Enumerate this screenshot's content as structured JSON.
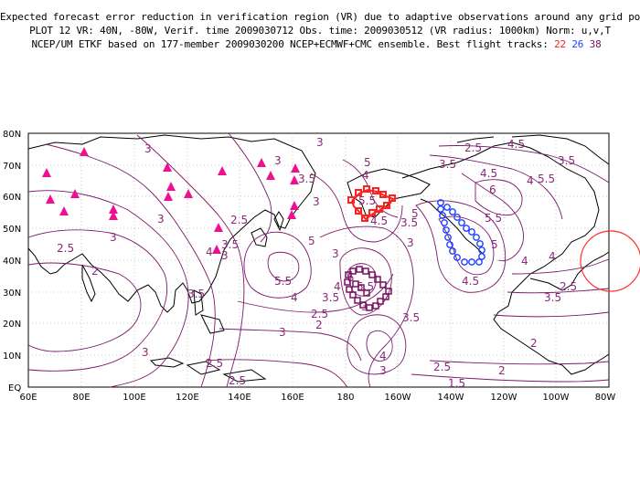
{
  "header": {
    "line1": "Expected forecast error reduction in verification region (VR) due to adaptive observations around any grid point.",
    "line2": "PLOT 12 VR: 40N, -80W, Verif. time 2009030712 Obs. time: 2009030512 (VR radius: 1000km) Norm: u,v,T",
    "line3_prefix": "NCEP/UM ETKF based on 177-member 2009030200 NCEP+ECMWF+CMC ensemble. Best flight tracks:",
    "tracks": [
      "22",
      "26",
      "38"
    ]
  },
  "lat_labels": [
    "80N",
    "70N",
    "60N",
    "50N",
    "40N",
    "30N",
    "20N",
    "10N",
    "EQ"
  ],
  "lon_labels": [
    "60E",
    "80E",
    "100E",
    "120E",
    "140E",
    "160E",
    "180",
    "160W",
    "140W",
    "120W",
    "100W",
    "80W"
  ],
  "contour_labels": [
    "3",
    "3",
    "3",
    "3",
    "3",
    "3",
    "3",
    "3",
    "3",
    "3",
    "3",
    "3",
    "3",
    "2.5",
    "2.5",
    "2.5",
    "2.5",
    "2.5",
    "2.5",
    "2.5",
    "2.5",
    "2",
    "2",
    "2",
    "2",
    "3.5",
    "3.5",
    "3.5",
    "3.5",
    "3.5",
    "3.5",
    "3.5",
    "3.5",
    "3.5",
    "4",
    "4",
    "4",
    "4",
    "4",
    "4",
    "4",
    "4",
    "4.5",
    "4.5",
    "4.5",
    "4.5",
    "5",
    "5",
    "5",
    "5",
    "5",
    "5.5",
    "5.5",
    "5.5",
    "5.5",
    "5.5",
    "6",
    "1.5"
  ],
  "colors": {
    "track22": "#ff2020",
    "track26": "#2040ff",
    "track38": "#7a1060",
    "triangles": "#ee1090",
    "verif_circle": "#ff3030",
    "contours": "#7a1a6a"
  }
}
